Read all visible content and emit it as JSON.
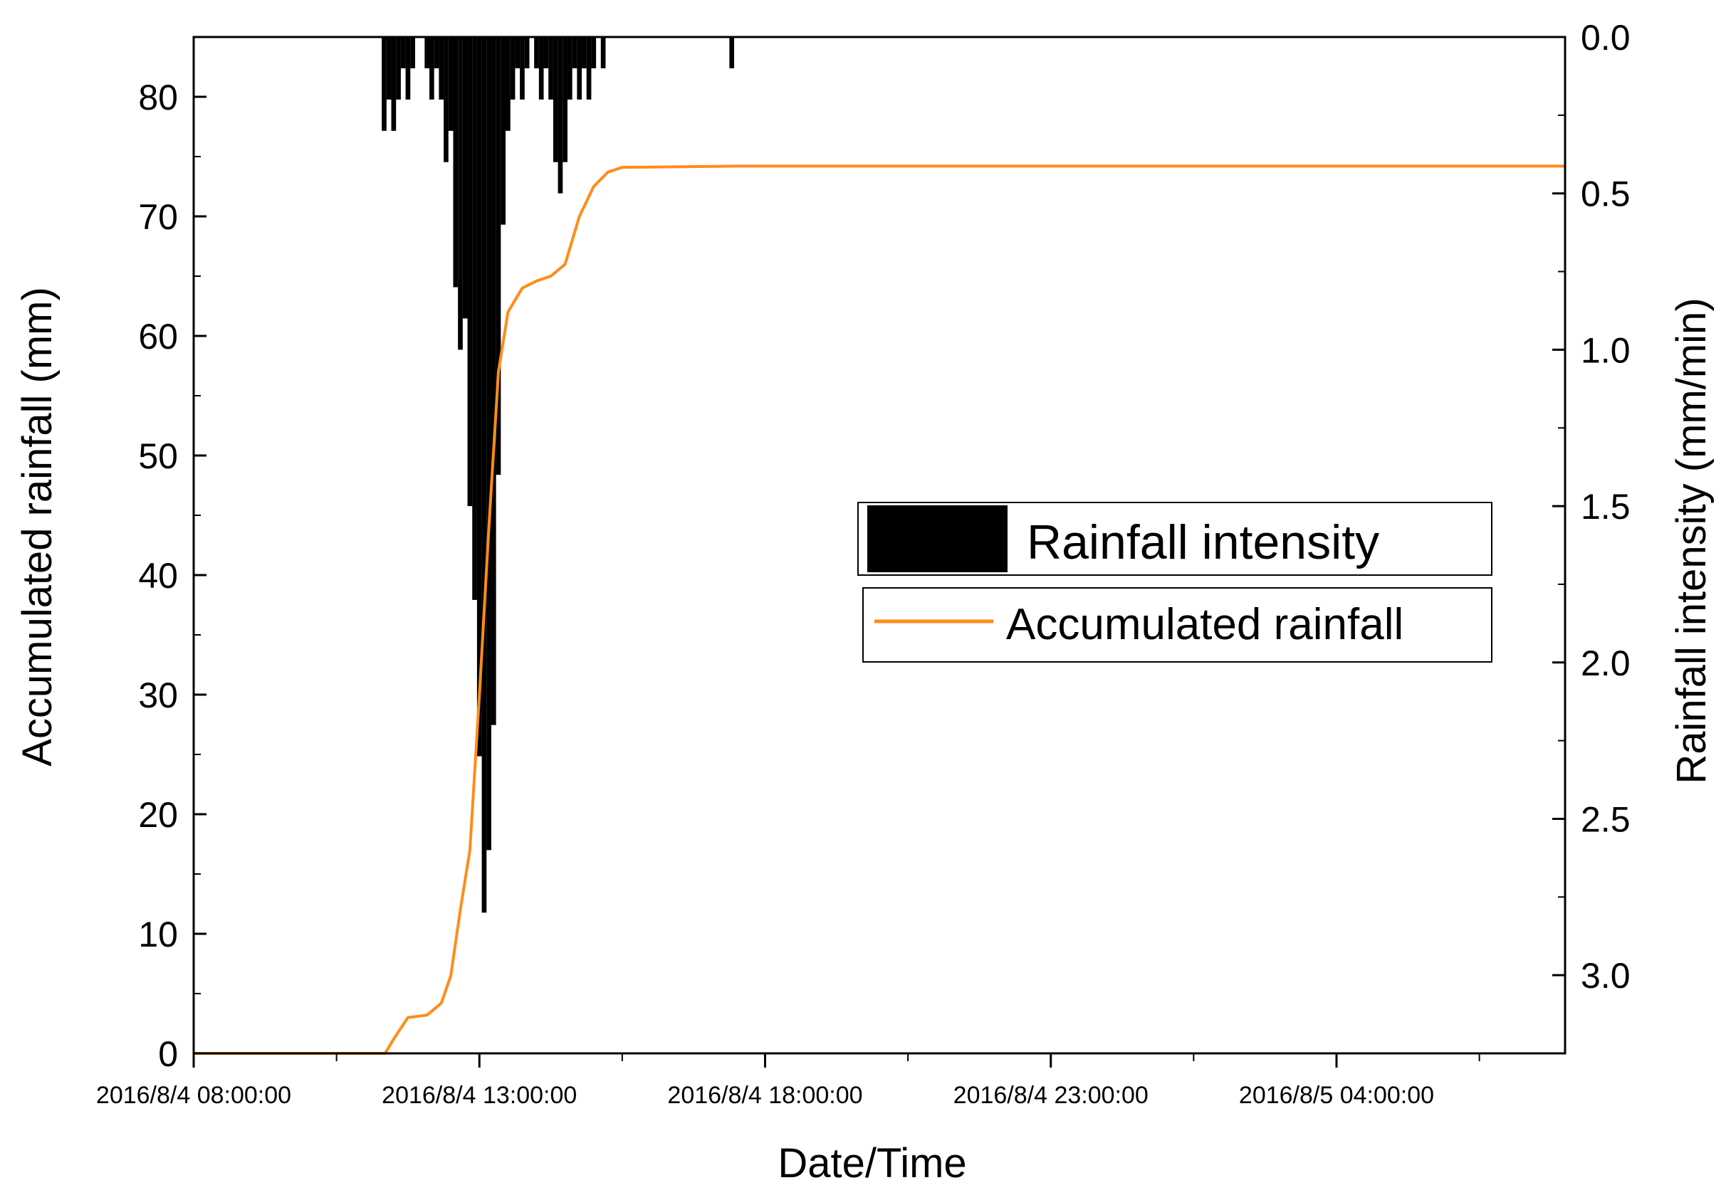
{
  "chart_data": {
    "type": "bar+line",
    "xlabel": "Date/Time",
    "ylabel_left": "Accumulated rainfall (mm)",
    "ylabel_right": "Rainfall intensity (mm/min)",
    "x_range_hours": [
      "2016/8/4 08:00:00",
      "2016/8/5 08:00:00"
    ],
    "xticks": [
      "2016/8/4 08:00:00",
      "2016/8/4 13:00:00",
      "2016/8/4 18:00:00",
      "2016/8/4 23:00:00",
      "2016/8/5 04:00:00"
    ],
    "yticks_left": [
      "0",
      "10",
      "20",
      "30",
      "40",
      "50",
      "60",
      "70",
      "80"
    ],
    "ylim_left": [
      0,
      85
    ],
    "yticks_right": [
      "0.0",
      "0.5",
      "1.0",
      "1.5",
      "2.0",
      "2.5",
      "3.0"
    ],
    "ylim_right": [
      0,
      3.25
    ],
    "right_axis_inverted": true,
    "legend": {
      "placement": "center-right",
      "entries": [
        "Rainfall intensity",
        "Accumulated rainfall"
      ]
    },
    "colors": {
      "intensity": "#000000",
      "accumulated": "#ff8c1a"
    },
    "series": [
      {
        "name": "Accumulated rainfall",
        "type": "line",
        "points": [
          [
            "2016/8/4 08:00",
            0
          ],
          [
            "2016/8/4 11:21",
            0
          ],
          [
            "2016/8/4 11:30",
            1.2
          ],
          [
            "2016/8/4 11:45",
            3.0
          ],
          [
            "2016/8/4 12:05",
            3.2
          ],
          [
            "2016/8/4 12:20",
            4.2
          ],
          [
            "2016/8/4 12:30",
            6.5
          ],
          [
            "2016/8/4 12:40",
            12.0
          ],
          [
            "2016/8/4 12:50",
            17.0
          ],
          [
            "2016/8/4 13:00",
            30.0
          ],
          [
            "2016/8/4 13:10",
            44.0
          ],
          [
            "2016/8/4 13:20",
            57.0
          ],
          [
            "2016/8/4 13:30",
            62.0
          ],
          [
            "2016/8/4 13:45",
            64.0
          ],
          [
            "2016/8/4 14:00",
            64.6
          ],
          [
            "2016/8/4 14:15",
            65.0
          ],
          [
            "2016/8/4 14:30",
            66.0
          ],
          [
            "2016/8/4 14:45",
            70.0
          ],
          [
            "2016/8/4 15:00",
            72.5
          ],
          [
            "2016/8/4 15:15",
            73.7
          ],
          [
            "2016/8/4 15:30",
            74.1
          ],
          [
            "2016/8/4 17:30",
            74.2
          ],
          [
            "2016/8/5 08:00",
            74.2
          ]
        ]
      },
      {
        "name": "Rainfall intensity",
        "type": "bar",
        "unit": "mm/min",
        "points": [
          [
            "2016/8/4 11:20",
            0.3
          ],
          [
            "2016/8/4 11:25",
            0.2
          ],
          [
            "2016/8/4 11:30",
            0.3
          ],
          [
            "2016/8/4 11:35",
            0.2
          ],
          [
            "2016/8/4 11:40",
            0.1
          ],
          [
            "2016/8/4 11:45",
            0.2
          ],
          [
            "2016/8/4 11:50",
            0.1
          ],
          [
            "2016/8/4 12:05",
            0.1
          ],
          [
            "2016/8/4 12:10",
            0.2
          ],
          [
            "2016/8/4 12:15",
            0.1
          ],
          [
            "2016/8/4 12:20",
            0.2
          ],
          [
            "2016/8/4 12:25",
            0.4
          ],
          [
            "2016/8/4 12:30",
            0.3
          ],
          [
            "2016/8/4 12:35",
            0.8
          ],
          [
            "2016/8/4 12:40",
            1.0
          ],
          [
            "2016/8/4 12:45",
            0.9
          ],
          [
            "2016/8/4 12:50",
            1.5
          ],
          [
            "2016/8/4 12:55",
            1.8
          ],
          [
            "2016/8/4 13:00",
            2.3
          ],
          [
            "2016/8/4 13:05",
            2.8
          ],
          [
            "2016/8/4 13:10",
            2.6
          ],
          [
            "2016/8/4 13:15",
            2.2
          ],
          [
            "2016/8/4 13:20",
            1.4
          ],
          [
            "2016/8/4 13:25",
            0.6
          ],
          [
            "2016/8/4 13:30",
            0.3
          ],
          [
            "2016/8/4 13:35",
            0.2
          ],
          [
            "2016/8/4 13:40",
            0.1
          ],
          [
            "2016/8/4 13:45",
            0.2
          ],
          [
            "2016/8/4 13:50",
            0.1
          ],
          [
            "2016/8/4 14:00",
            0.1
          ],
          [
            "2016/8/4 14:05",
            0.2
          ],
          [
            "2016/8/4 14:10",
            0.1
          ],
          [
            "2016/8/4 14:15",
            0.2
          ],
          [
            "2016/8/4 14:20",
            0.4
          ],
          [
            "2016/8/4 14:25",
            0.5
          ],
          [
            "2016/8/4 14:30",
            0.4
          ],
          [
            "2016/8/4 14:35",
            0.2
          ],
          [
            "2016/8/4 14:40",
            0.1
          ],
          [
            "2016/8/4 14:45",
            0.2
          ],
          [
            "2016/8/4 14:50",
            0.1
          ],
          [
            "2016/8/4 14:55",
            0.2
          ],
          [
            "2016/8/4 15:00",
            0.1
          ],
          [
            "2016/8/4 15:10",
            0.1
          ],
          [
            "2016/8/4 17:25",
            0.1
          ]
        ]
      }
    ]
  }
}
